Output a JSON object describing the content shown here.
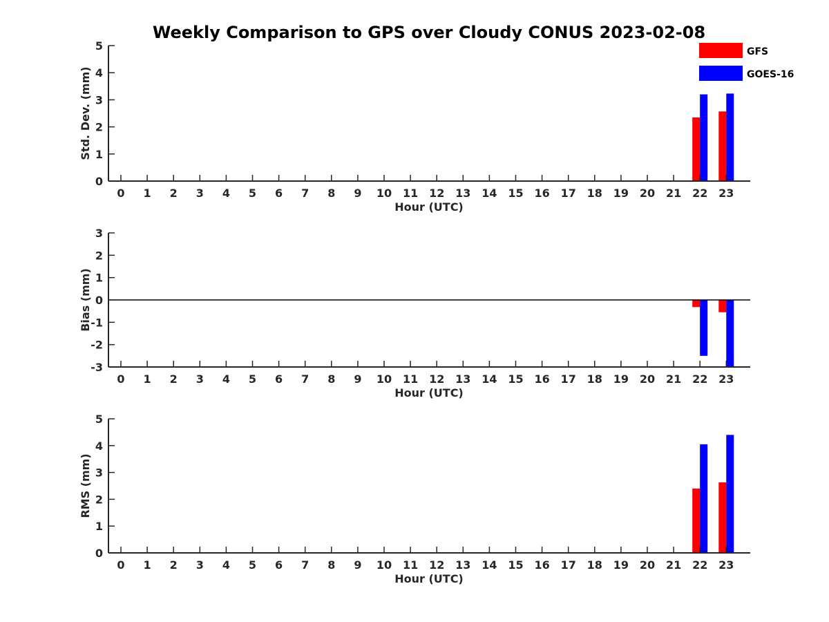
{
  "title": "Weekly Comparison to GPS over Cloudy CONUS 2023-02-08",
  "legend": {
    "placement": "top-right",
    "entries": [
      {
        "name": "GFS",
        "color": "#ff0000"
      },
      {
        "name": "GOES-16",
        "color": "#0000ff"
      }
    ]
  },
  "chart_data": [
    {
      "type": "bar",
      "xlabel": "Hour (UTC)",
      "ylabel": "Std. Dev. (mm)",
      "ylim": [
        0,
        5
      ],
      "yticks": [
        "0",
        "1",
        "2",
        "3",
        "4",
        "5"
      ],
      "categories": [
        "0",
        "1",
        "2",
        "3",
        "4",
        "5",
        "6",
        "7",
        "8",
        "9",
        "10",
        "11",
        "12",
        "13",
        "14",
        "15",
        "16",
        "17",
        "18",
        "19",
        "20",
        "21",
        "22",
        "23"
      ],
      "zero_line": false,
      "series": [
        {
          "name": "GFS",
          "color": "#ff0000",
          "values": [
            null,
            null,
            null,
            null,
            null,
            null,
            null,
            null,
            null,
            null,
            null,
            null,
            null,
            null,
            null,
            null,
            null,
            null,
            null,
            null,
            null,
            null,
            2.35,
            2.57
          ]
        },
        {
          "name": "GOES-16",
          "color": "#0000ff",
          "values": [
            null,
            null,
            null,
            null,
            null,
            null,
            null,
            null,
            null,
            null,
            null,
            null,
            null,
            null,
            null,
            null,
            null,
            null,
            null,
            null,
            null,
            null,
            3.2,
            3.23
          ]
        }
      ]
    },
    {
      "type": "bar",
      "xlabel": "Hour (UTC)",
      "ylabel": "Bias (mm)",
      "ylim": [
        -3,
        3
      ],
      "yticks": [
        "-3",
        "-2",
        "-1",
        "0",
        "1",
        "2",
        "3"
      ],
      "categories": [
        "0",
        "1",
        "2",
        "3",
        "4",
        "5",
        "6",
        "7",
        "8",
        "9",
        "10",
        "11",
        "12",
        "13",
        "14",
        "15",
        "16",
        "17",
        "18",
        "19",
        "20",
        "21",
        "22",
        "23"
      ],
      "zero_line": true,
      "series": [
        {
          "name": "GFS",
          "color": "#ff0000",
          "values": [
            null,
            null,
            null,
            null,
            null,
            null,
            null,
            null,
            null,
            null,
            null,
            null,
            null,
            null,
            null,
            null,
            null,
            null,
            null,
            null,
            null,
            null,
            -0.32,
            -0.55
          ]
        },
        {
          "name": "GOES-16",
          "color": "#0000ff",
          "values": [
            null,
            null,
            null,
            null,
            null,
            null,
            null,
            null,
            null,
            null,
            null,
            null,
            null,
            null,
            null,
            null,
            null,
            null,
            null,
            null,
            null,
            null,
            -2.5,
            -3.0
          ]
        }
      ]
    },
    {
      "type": "bar",
      "xlabel": "Hour (UTC)",
      "ylabel": "RMS (mm)",
      "ylim": [
        0,
        5
      ],
      "yticks": [
        "0",
        "1",
        "2",
        "3",
        "4",
        "5"
      ],
      "categories": [
        "0",
        "1",
        "2",
        "3",
        "4",
        "5",
        "6",
        "7",
        "8",
        "9",
        "10",
        "11",
        "12",
        "13",
        "14",
        "15",
        "16",
        "17",
        "18",
        "19",
        "20",
        "21",
        "22",
        "23"
      ],
      "zero_line": false,
      "series": [
        {
          "name": "GFS",
          "color": "#ff0000",
          "values": [
            null,
            null,
            null,
            null,
            null,
            null,
            null,
            null,
            null,
            null,
            null,
            null,
            null,
            null,
            null,
            null,
            null,
            null,
            null,
            null,
            null,
            null,
            2.4,
            2.63
          ]
        },
        {
          "name": "GOES-16",
          "color": "#0000ff",
          "values": [
            null,
            null,
            null,
            null,
            null,
            null,
            null,
            null,
            null,
            null,
            null,
            null,
            null,
            null,
            null,
            null,
            null,
            null,
            null,
            null,
            null,
            null,
            4.05,
            4.4
          ]
        }
      ]
    }
  ]
}
